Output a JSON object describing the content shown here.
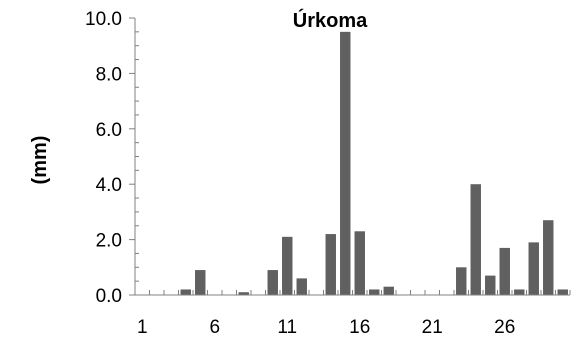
{
  "chart_data": {
    "type": "bar",
    "title": "Úrkoma",
    "ylabel": "(mm)",
    "xlabel": "",
    "ylim": [
      0,
      10
    ],
    "yticks": [
      "0.0",
      "2.0",
      "4.0",
      "6.0",
      "8.0",
      "10.0"
    ],
    "xtick_labels": [
      "1",
      "6",
      "11",
      "16",
      "21",
      "26"
    ],
    "categories": [
      1,
      2,
      3,
      4,
      5,
      6,
      7,
      8,
      9,
      10,
      11,
      12,
      13,
      14,
      15,
      16,
      17,
      18,
      19,
      20,
      21,
      22,
      23,
      24,
      25,
      26,
      27,
      28,
      29,
      30
    ],
    "values": [
      0.0,
      0.0,
      0.0,
      0.2,
      0.9,
      0.0,
      0.0,
      0.1,
      0.0,
      0.9,
      2.1,
      0.6,
      0.0,
      2.2,
      9.5,
      2.3,
      0.2,
      0.3,
      0.0,
      0.0,
      0.0,
      0.0,
      1.0,
      4.0,
      0.7,
      1.7,
      0.2,
      1.9,
      2.7,
      0.2
    ],
    "bar_color": "#606060",
    "grid": false
  }
}
